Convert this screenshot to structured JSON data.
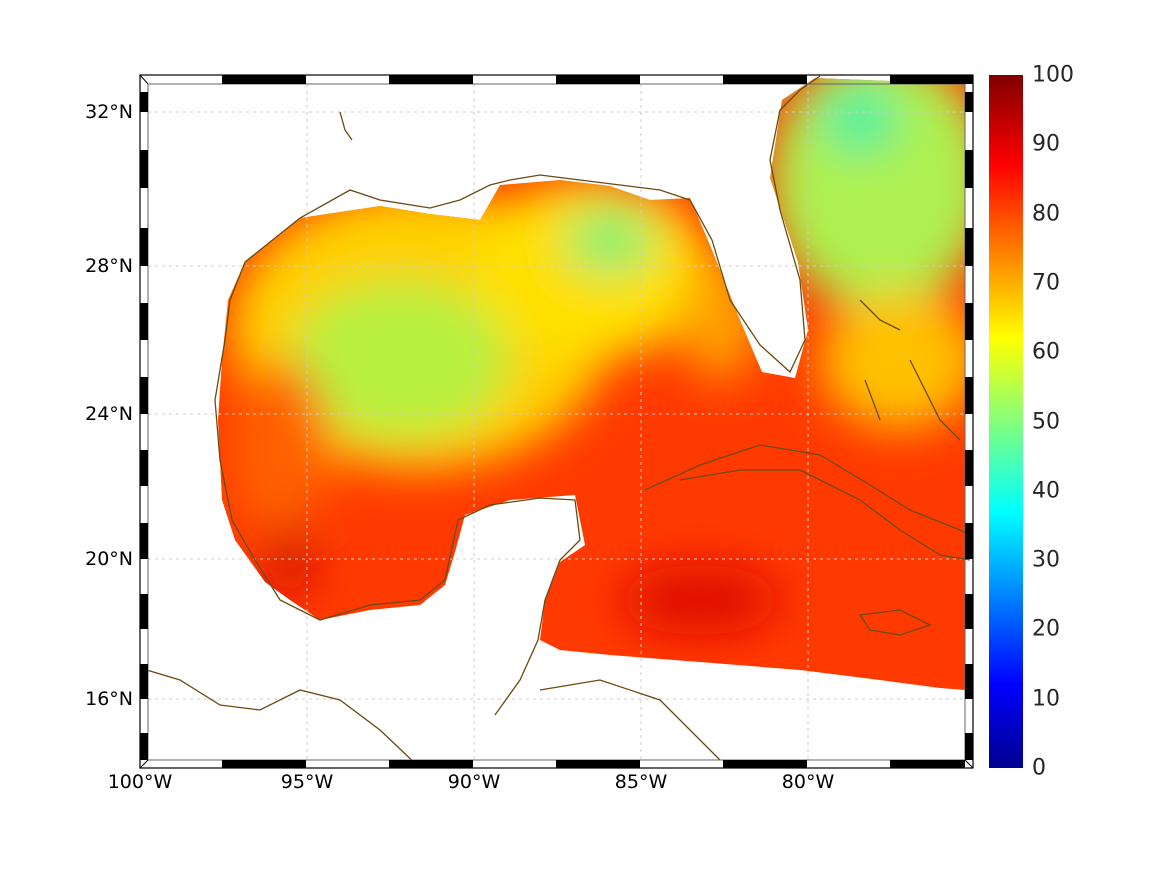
{
  "chart_data": {
    "type": "heatmap",
    "title": "",
    "description_region": "Gulf of Mexico and western Caribbean",
    "lat_ticks": [
      "32°N",
      "28°N",
      "24°N",
      "20°N",
      "16°N"
    ],
    "lon_ticks": [
      "100°W",
      "95°W",
      "90°W",
      "85°W",
      "80°W"
    ],
    "lat_values": [
      32,
      28,
      24,
      20,
      16
    ],
    "lon_values": [
      -100,
      -95,
      -90,
      -85,
      -80
    ],
    "xlim": [
      -100,
      -75
    ],
    "ylim": [
      14.2,
      33
    ],
    "colorbar": {
      "colormap": "jet",
      "range": [
        0,
        100
      ],
      "ticks": [
        "100",
        "90",
        "80",
        "70",
        "60",
        "50",
        "40",
        "30",
        "20",
        "10",
        "0"
      ]
    },
    "grid": true,
    "coastline_color": "#6b4a10"
  }
}
